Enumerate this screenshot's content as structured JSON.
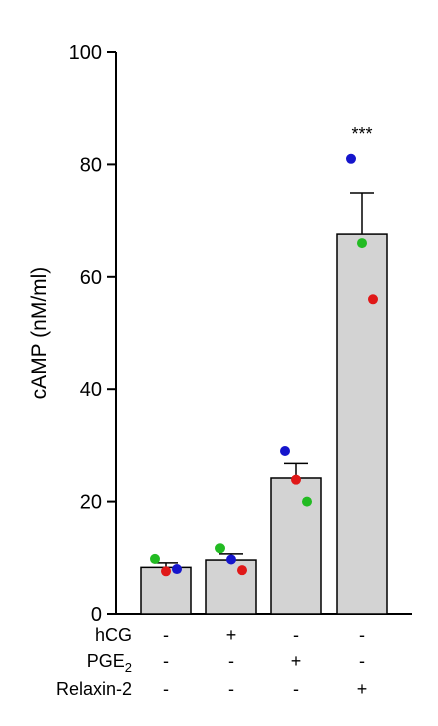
{
  "chart_data": {
    "type": "bar",
    "ylabel": "cAMP (nM/ml)",
    "ylim": [
      0,
      100
    ],
    "yticks": [
      "0",
      "20",
      "40",
      "60",
      "80",
      "100"
    ],
    "grid": false,
    "bar_color": "#d3d3d3",
    "bars": [
      {
        "mean": 8.3,
        "sem": 0.8,
        "points": [
          {
            "value": 9.8,
            "color": "#22bb22"
          },
          {
            "value": 7.6,
            "color": "#e01818"
          },
          {
            "value": 8.0,
            "color": "#1515cc"
          }
        ]
      },
      {
        "mean": 9.6,
        "sem": 1.1,
        "points": [
          {
            "value": 11.7,
            "color": "#22bb22"
          },
          {
            "value": 9.7,
            "color": "#1515cc"
          },
          {
            "value": 7.8,
            "color": "#e01818"
          }
        ]
      },
      {
        "mean": 24.2,
        "sem": 2.6,
        "points": [
          {
            "value": 29.0,
            "color": "#1515cc"
          },
          {
            "value": 23.9,
            "color": "#e01818"
          },
          {
            "value": 20.0,
            "color": "#22bb22"
          }
        ]
      },
      {
        "mean": 67.6,
        "sem": 7.3,
        "points": [
          {
            "value": 81.0,
            "color": "#1515cc"
          },
          {
            "value": 66.0,
            "color": "#22bb22"
          },
          {
            "value": 56.0,
            "color": "#e01818"
          }
        ],
        "annotation": "***"
      }
    ],
    "conditions": [
      {
        "label": "hCG",
        "values": [
          "-",
          "+",
          "-",
          "-"
        ]
      },
      {
        "label": "PGE",
        "subscript": "2",
        "values": [
          "-",
          "-",
          "+",
          "-"
        ]
      },
      {
        "label": "Relaxin-2",
        "values": [
          "-",
          "-",
          "-",
          "+"
        ]
      }
    ]
  }
}
